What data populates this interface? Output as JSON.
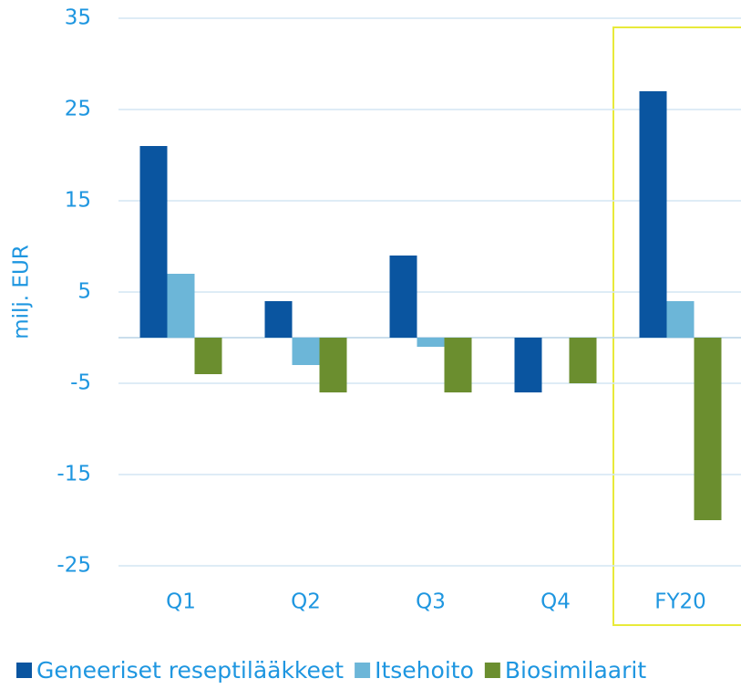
{
  "chart_data": {
    "type": "bar",
    "y_axis_label": "milj. EUR",
    "categories": [
      "Q1",
      "Q2",
      "Q3",
      "Q4",
      "FY20"
    ],
    "series": [
      {
        "name": "Geneeriset reseptilääkkeet",
        "color": "#0a55a0",
        "values": [
          21,
          4,
          9,
          -6,
          27
        ]
      },
      {
        "name": "Itsehoito",
        "color": "#6cb6d8",
        "values": [
          7,
          -3,
          -1,
          0,
          4
        ]
      },
      {
        "name": "Biosimilaarit",
        "color": "#6b8e2f",
        "values": [
          -4,
          -6,
          -6,
          -5,
          -20
        ]
      }
    ],
    "ylim": [
      -25,
      35
    ],
    "yticks": [
      -25,
      -15,
      -5,
      5,
      15,
      25,
      35
    ],
    "grid": true,
    "legend": "bottom"
  }
}
